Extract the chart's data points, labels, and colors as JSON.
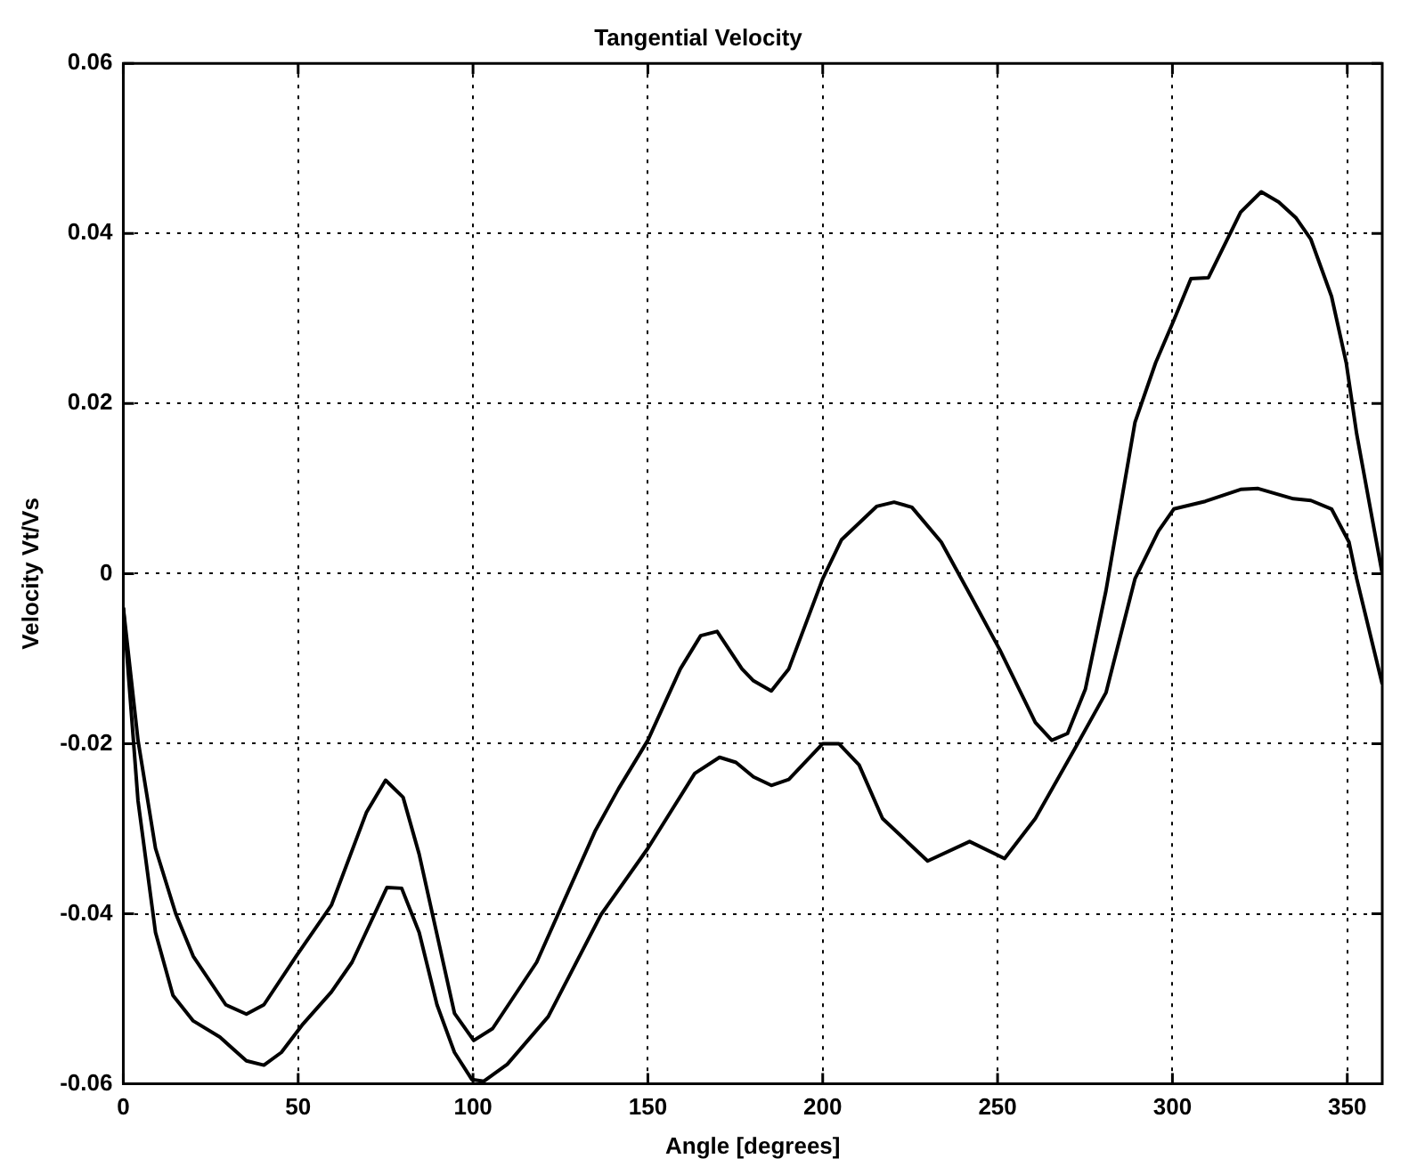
{
  "chart_data": {
    "type": "line",
    "title": "Tangential Velocity",
    "xlabel": "Angle [degrees]",
    "ylabel": "Velocity Vt/Vs",
    "xlim": [
      0,
      360
    ],
    "xticks": [
      0,
      50,
      100,
      150,
      200,
      250,
      300,
      350
    ],
    "ylim": [
      -0.06,
      0.06
    ],
    "yticks": [
      -0.06,
      -0.04,
      -0.02,
      0,
      0.02,
      0.04,
      0.06
    ],
    "grid": true,
    "legend": false,
    "marker": "none",
    "line_style": "solid",
    "series": [
      {
        "color": "#000000",
        "x": [
          0,
          4.2,
          9.2,
          15,
          20,
          29.3,
          35.2,
          40.2,
          49.4,
          59.5,
          69.5,
          75,
          80,
          84.6,
          94.7,
          100.2,
          105.6,
          118.2,
          135,
          141.6,
          150,
          159.3,
          165.1,
          169.8,
          176.9,
          180.2,
          185.3,
          190.3,
          200,
          205.4,
          215.4,
          220.4,
          225.5,
          233.9,
          242.3,
          250.7,
          260.8,
          265.5,
          270,
          275.1,
          281,
          289.3,
          295.2,
          300.4,
          305.3,
          310.3,
          319.5,
          325.4,
          330.4,
          335.4,
          339.6,
          345.5,
          349.7,
          352.7,
          360
        ],
        "values": [
          -0.004,
          -0.0196,
          -0.0323,
          -0.04,
          -0.045,
          -0.0507,
          -0.0518,
          -0.0507,
          -0.045,
          -0.039,
          -0.0281,
          -0.0243,
          -0.0263,
          -0.033,
          -0.0517,
          -0.0549,
          -0.0535,
          -0.0457,
          -0.0302,
          -0.0253,
          -0.0196,
          -0.0112,
          -0.0073,
          -0.0068,
          -0.0112,
          -0.0126,
          -0.0138,
          -0.0112,
          -0.0006,
          0.004,
          0.0079,
          0.0084,
          0.0078,
          0.0037,
          -0.0026,
          -0.009,
          -0.0175,
          -0.0196,
          -0.0188,
          -0.0136,
          -0.002,
          0.0178,
          0.0248,
          0.0298,
          0.0347,
          0.0348,
          0.0425,
          0.0449,
          0.0437,
          0.0418,
          0.0393,
          0.0326,
          0.0248,
          0.0164,
          0.0
        ]
      },
      {
        "color": "#000000",
        "x": [
          0,
          4.2,
          9.2,
          14.2,
          20,
          27.6,
          35.2,
          40.2,
          45.2,
          51.1,
          59.5,
          65.4,
          75.4,
          79.6,
          84.6,
          89.7,
          94.7,
          99.7,
          103.1,
          109.8,
          121.5,
          136.6,
          150,
          163.4,
          170.5,
          175.2,
          180.2,
          185.3,
          190.3,
          200,
          204.6,
          210.4,
          217.1,
          230,
          242,
          252,
          260.8,
          272.5,
          281,
          289.3,
          296,
          300.4,
          309.4,
          319.5,
          324.5,
          334.6,
          339.6,
          345.5,
          350.5,
          352.7,
          360
        ],
        "values": [
          -0.004,
          -0.0267,
          -0.0422,
          -0.0496,
          -0.0526,
          -0.0545,
          -0.0573,
          -0.0578,
          -0.0563,
          -0.0531,
          -0.0492,
          -0.0457,
          -0.0369,
          -0.037,
          -0.0422,
          -0.0507,
          -0.0563,
          -0.0595,
          -0.0597,
          -0.0577,
          -0.0521,
          -0.0401,
          -0.0323,
          -0.0235,
          -0.0216,
          -0.0222,
          -0.0239,
          -0.0249,
          -0.0242,
          -0.02,
          -0.02,
          -0.0225,
          -0.0288,
          -0.0338,
          -0.0315,
          -0.0335,
          -0.0288,
          -0.0203,
          -0.014,
          -0.0006,
          0.005,
          0.0076,
          0.0085,
          0.0099,
          0.01,
          0.0088,
          0.0086,
          0.0076,
          0.0037,
          -0.0006,
          -0.013
        ]
      }
    ]
  }
}
